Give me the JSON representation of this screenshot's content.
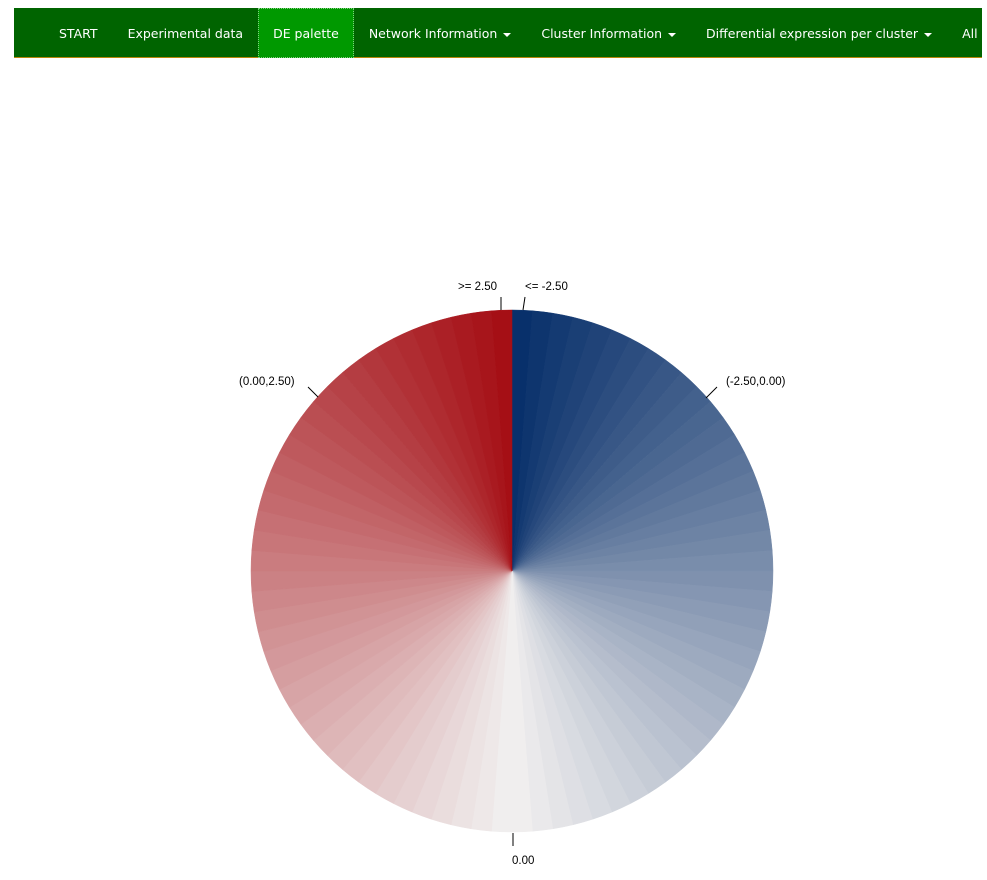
{
  "navbar": {
    "items": [
      {
        "label": "START",
        "dropdown": false,
        "active": false
      },
      {
        "label": "Experimental data",
        "dropdown": false,
        "active": false
      },
      {
        "label": "DE palette",
        "dropdown": false,
        "active": true
      },
      {
        "label": "Network Information",
        "dropdown": true,
        "active": false
      },
      {
        "label": "Cluster Information",
        "dropdown": true,
        "active": false
      },
      {
        "label": "Differential expression per cluster",
        "dropdown": true,
        "active": false
      },
      {
        "label": "All Controls",
        "dropdown": false,
        "active": false
      }
    ],
    "colors": {
      "background": "#006400",
      "active": "#009900",
      "text": "#ffffff"
    }
  },
  "chart_data": {
    "type": "pie",
    "slices": 80,
    "labels": [
      ">= 2.50",
      "<= -2.50",
      "(-2.50,0.00)",
      "0.00",
      "(0.00,2.50)"
    ],
    "colors": {
      "negative_end": "#08306b",
      "zero": "#f0eeee",
      "positive_end": "#a50f15"
    }
  }
}
